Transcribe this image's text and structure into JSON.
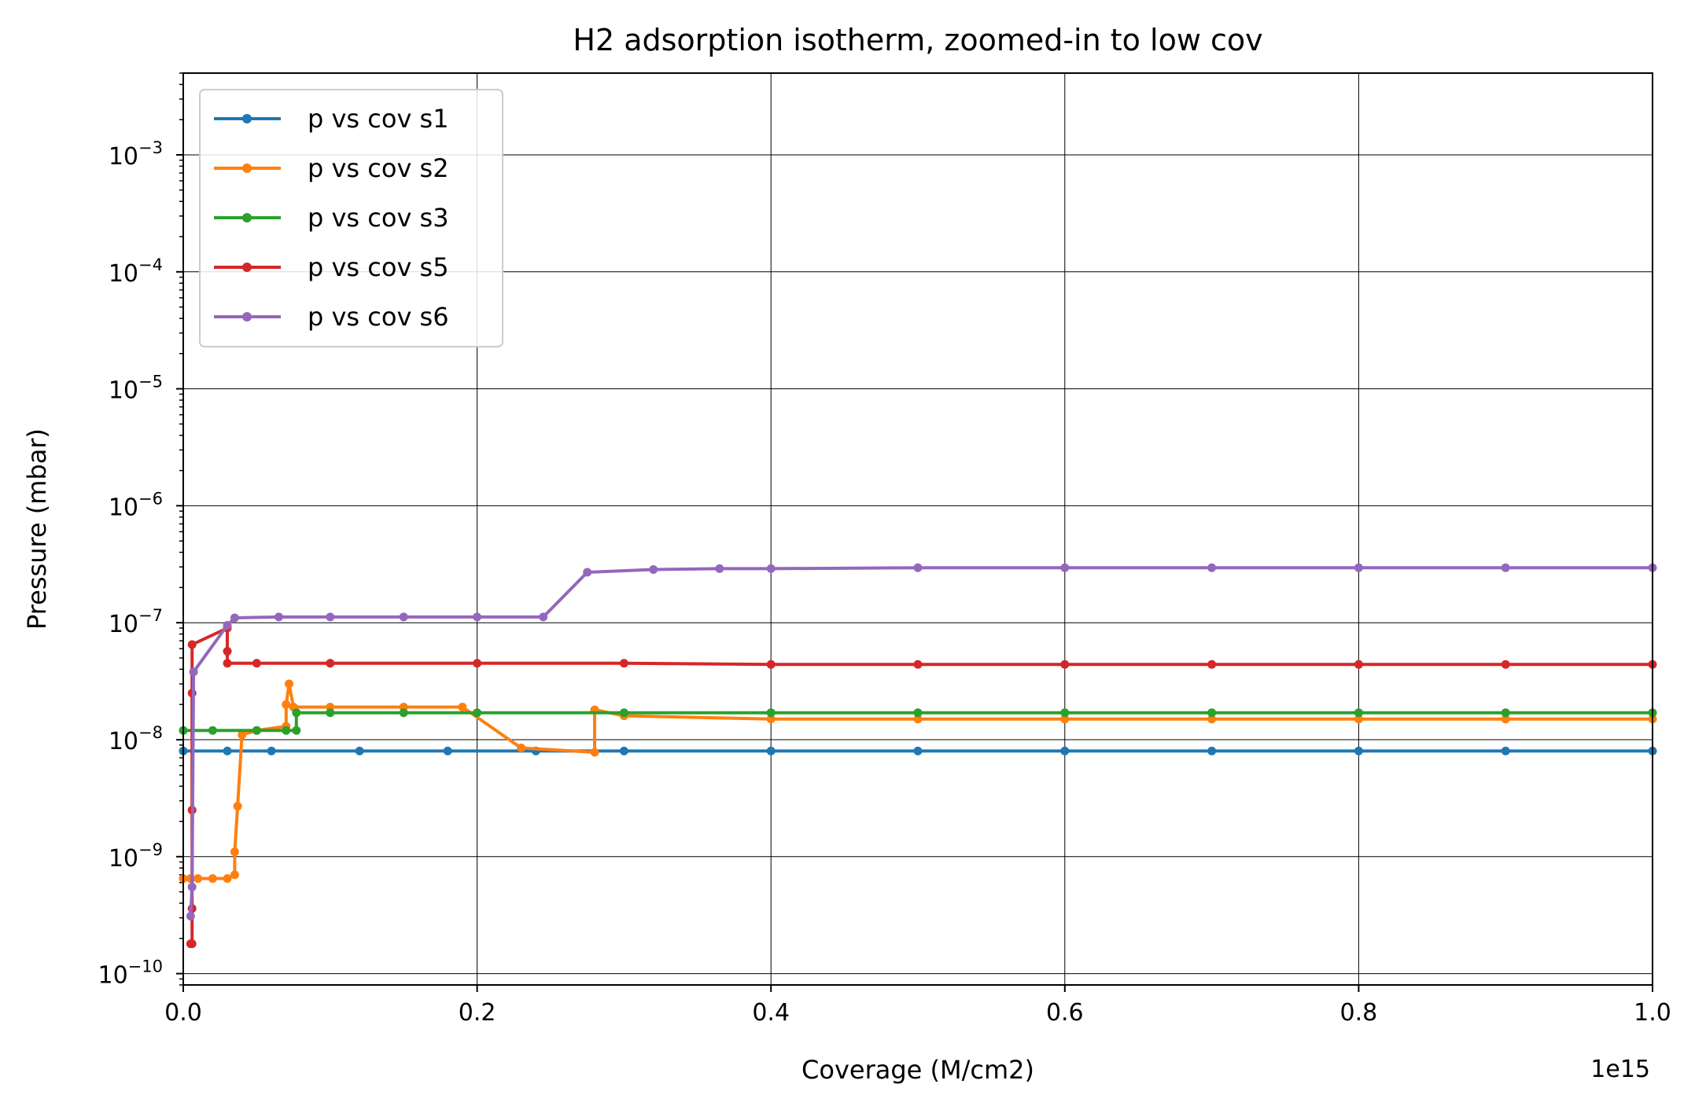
{
  "chart_data": {
    "type": "line",
    "title": "H2 adsorption isotherm, zoomed-in to low cov",
    "xlabel": "Coverage (M/cm2)",
    "ylabel": "Pressure (mbar)",
    "x_offset_label": "1e15",
    "x_scale": "linear",
    "y_scale": "log",
    "xlim": [
      0,
      1.0
    ],
    "ylim": [
      8e-11,
      0.005
    ],
    "x_ticks": [
      "0.0",
      "0.2",
      "0.4",
      "0.6",
      "0.8",
      "1.0"
    ],
    "y_tick_exponents": [
      "−10",
      "−9",
      "−8",
      "−7",
      "−6",
      "−5",
      "−4",
      "−3"
    ],
    "grid": true,
    "legend_position": "upper-left",
    "series": [
      {
        "name": "p vs cov s1",
        "color": "#1f77b4",
        "x": [
          0.0,
          0.03,
          0.06,
          0.12,
          0.18,
          0.24,
          0.3,
          0.4,
          0.5,
          0.6,
          0.7,
          0.8,
          0.9,
          1.0
        ],
        "y": [
          8e-09,
          8e-09,
          8e-09,
          8e-09,
          8e-09,
          8e-09,
          8e-09,
          8e-09,
          8e-09,
          8e-09,
          8e-09,
          8e-09,
          8e-09,
          8e-09
        ]
      },
      {
        "name": "p vs cov s2",
        "color": "#ff7f0e",
        "x": [
          0.0,
          0.005,
          0.01,
          0.02,
          0.03,
          0.035,
          0.035,
          0.037,
          0.04,
          0.05,
          0.07,
          0.07,
          0.072,
          0.075,
          0.1,
          0.15,
          0.19,
          0.23,
          0.28,
          0.28,
          0.3,
          0.4,
          0.5,
          0.6,
          0.7,
          0.8,
          0.9,
          1.0
        ],
        "y": [
          6.5e-10,
          6.5e-10,
          6.5e-10,
          6.5e-10,
          6.5e-10,
          7e-10,
          1.1e-09,
          2.7e-09,
          1.1e-08,
          1.2e-08,
          1.3e-08,
          2e-08,
          3e-08,
          1.9e-08,
          1.9e-08,
          1.9e-08,
          1.9e-08,
          8.5e-09,
          7.8e-09,
          1.8e-08,
          1.6e-08,
          1.5e-08,
          1.5e-08,
          1.5e-08,
          1.5e-08,
          1.5e-08,
          1.5e-08,
          1.5e-08
        ]
      },
      {
        "name": "p vs cov s3",
        "color": "#2ca02c",
        "x": [
          0.0,
          0.02,
          0.05,
          0.07,
          0.077,
          0.077,
          0.1,
          0.15,
          0.2,
          0.3,
          0.4,
          0.5,
          0.6,
          0.7,
          0.8,
          0.9,
          1.0
        ],
        "y": [
          1.2e-08,
          1.2e-08,
          1.2e-08,
          1.2e-08,
          1.2e-08,
          1.7e-08,
          1.7e-08,
          1.7e-08,
          1.7e-08,
          1.7e-08,
          1.7e-08,
          1.7e-08,
          1.7e-08,
          1.7e-08,
          1.7e-08,
          1.7e-08,
          1.7e-08
        ]
      },
      {
        "name": "p vs cov s5",
        "color": "#d62728",
        "x": [
          0.005,
          0.006,
          0.006,
          0.006,
          0.006,
          0.006,
          0.03,
          0.03,
          0.03,
          0.05,
          0.1,
          0.2,
          0.3,
          0.4,
          0.5,
          0.6,
          0.7,
          0.8,
          0.9,
          1.0
        ],
        "y": [
          1.8e-10,
          1.8e-10,
          3.6e-10,
          2.5e-09,
          2.5e-08,
          6.5e-08,
          9e-08,
          5.7e-08,
          4.5e-08,
          4.5e-08,
          4.5e-08,
          4.5e-08,
          4.5e-08,
          4.4e-08,
          4.4e-08,
          4.4e-08,
          4.4e-08,
          4.4e-08,
          4.4e-08,
          4.4e-08
        ]
      },
      {
        "name": "p vs cov s6",
        "color": "#9467bd",
        "x": [
          0.005,
          0.006,
          0.007,
          0.03,
          0.035,
          0.065,
          0.1,
          0.15,
          0.2,
          0.245,
          0.275,
          0.32,
          0.365,
          0.4,
          0.5,
          0.6,
          0.7,
          0.8,
          0.9,
          1.0
        ],
        "y": [
          3.1e-10,
          5.5e-10,
          3.8e-08,
          9.5e-08,
          1.1e-07,
          1.12e-07,
          1.12e-07,
          1.12e-07,
          1.12e-07,
          1.12e-07,
          2.7e-07,
          2.85e-07,
          2.9e-07,
          2.9e-07,
          2.95e-07,
          2.95e-07,
          2.95e-07,
          2.95e-07,
          2.95e-07,
          2.95e-07
        ]
      }
    ]
  }
}
